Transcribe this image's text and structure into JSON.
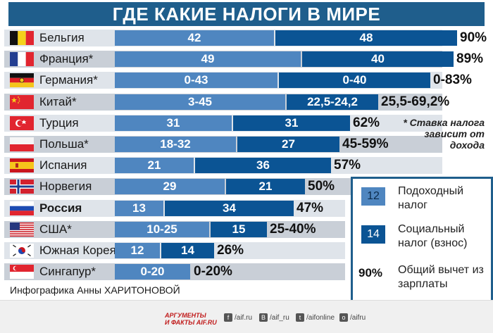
{
  "title": "ГДЕ КАКИЕ НАЛОГИ В МИРЕ",
  "note": "* Ставка налога зависит от дохода",
  "credit": "Инфографика Анны ХАРИТОНОВОЙ",
  "legend": {
    "income_label": "12",
    "income_text": "Подоходный налог",
    "social_label": "14",
    "social_text": "Социальный налог (взнос)",
    "total_label": "90%",
    "total_text": "Общий вычет из зарплаты"
  },
  "footer": {
    "logo_line1": "АРГУМЕНТЫ",
    "logo_line2": "И ФАКТЫ AIF.RU",
    "social": [
      {
        "icon": "f",
        "text": "/aif.ru"
      },
      {
        "icon": "B",
        "text": "/aif_ru"
      },
      {
        "icon": "t",
        "text": "/aifonline"
      },
      {
        "icon": "o",
        "text": "/aifru"
      }
    ]
  },
  "colors": {
    "title_bg": "#1f5e8c",
    "income": "#4f86c0",
    "social": "#0b5494",
    "row_light": "#dfe4ea",
    "row_dark": "#c9cfd7"
  },
  "chart_data": {
    "type": "bar",
    "stacked": true,
    "categories": [
      "Бельгия",
      "Франция*",
      "Германия*",
      "Китай*",
      "Турция",
      "Польша*",
      "Испания",
      "Норвегия",
      "Россия",
      "США*",
      "Южная Корея",
      "Сингапур*"
    ],
    "series": [
      {
        "name": "Подоходный налог",
        "values": [
          42,
          49,
          43,
          45,
          31,
          32,
          21,
          29,
          13,
          25,
          12,
          20
        ],
        "labels": [
          "42",
          "49",
          "0-43",
          "3-45",
          "31",
          "18-32",
          "21",
          "29",
          "13",
          "10-25",
          "12",
          "0-20"
        ]
      },
      {
        "name": "Социальный налог (взнос)",
        "values": [
          48,
          40,
          40,
          24.2,
          31,
          27,
          36,
          21,
          34,
          15,
          14,
          0
        ],
        "labels": [
          "48",
          "40",
          "0-40",
          "22,5-24,2",
          "31",
          "27",
          "36",
          "21",
          "34",
          "15",
          "14",
          ""
        ]
      }
    ],
    "totals": [
      "90%",
      "89%",
      "0-83%",
      "25,5-69,2%",
      "62%",
      "45-59%",
      "57%",
      "50%",
      "47%",
      "25-40%",
      "26%",
      "0-20%"
    ],
    "flags": [
      "belgium-flag",
      "france-flag",
      "germany-flag",
      "china-flag",
      "turkey-flag",
      "poland-flag",
      "spain-flag",
      "norway-flag",
      "russia-flag",
      "usa-flag",
      "south-korea-flag",
      "singapore-flag"
    ],
    "bold_category": "Россия"
  }
}
